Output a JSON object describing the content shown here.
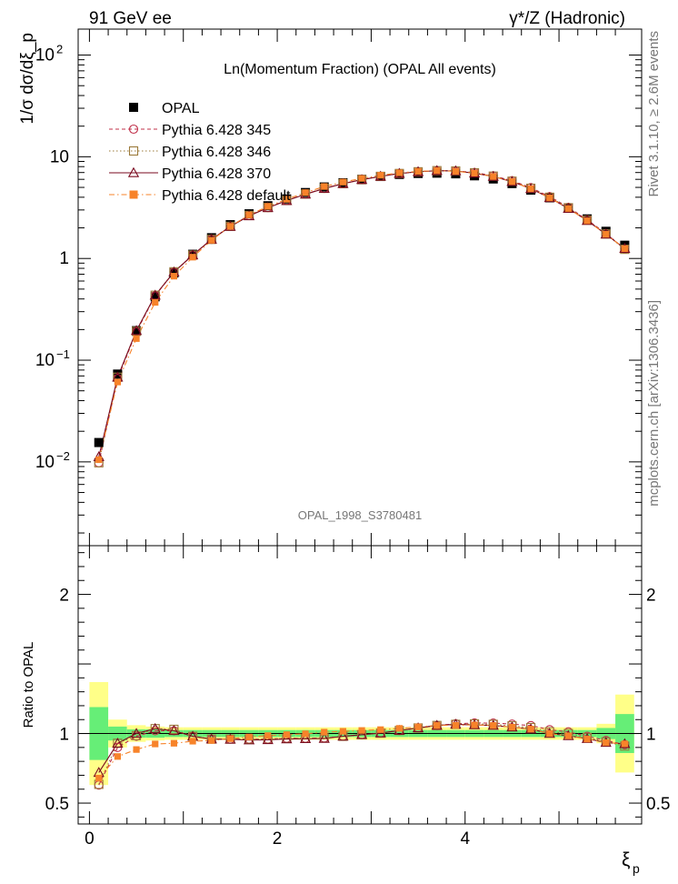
{
  "header": {
    "left": "91 GeV ee",
    "right": "γ*/Z (Hadronic)",
    "side_top": "Rivet 3.1.10, ≥ 2.6M events",
    "side_bottom": "mcplots.cern.ch [arXiv:1306.3436]"
  },
  "chart_data": [
    {
      "type": "scatter",
      "title": "Ln(Momentum Fraction) (OPAL All events)",
      "ylabel": "1/σ dσ/dξ_p",
      "watermark": "OPAL_1998_S3780481",
      "yscale": "log",
      "ylim": [
        0.0015,
        180
      ],
      "xlim": [
        -0.12,
        5.88
      ],
      "y_ticks": [
        "10^-2",
        "10^-1",
        "1",
        "10",
        "10^2"
      ],
      "x": [
        0.1,
        0.3,
        0.5,
        0.7,
        0.9,
        1.1,
        1.3,
        1.5,
        1.7,
        1.9,
        2.1,
        2.3,
        2.5,
        2.7,
        2.9,
        3.1,
        3.3,
        3.5,
        3.7,
        3.9,
        4.1,
        4.3,
        4.5,
        4.7,
        4.9,
        5.1,
        5.3,
        5.5,
        5.7
      ],
      "legend_position": "top-left",
      "series": [
        {
          "name": "OPAL",
          "color": "#000000",
          "marker": "filled-square",
          "values": [
            0.0155,
            0.073,
            0.195,
            0.42,
            0.72,
            1.1,
            1.6,
            2.15,
            2.75,
            3.3,
            3.85,
            4.45,
            5.05,
            5.55,
            6.0,
            6.4,
            6.7,
            6.85,
            6.9,
            6.8,
            6.5,
            6.05,
            5.45,
            4.7,
            3.95,
            3.15,
            2.45,
            1.85,
            1.35
          ]
        },
        {
          "name": "Pythia 6.428 345",
          "color": "#c0304a",
          "marker": "open-circle",
          "line": "dashed",
          "values": [
            0.0098,
            0.066,
            0.19,
            0.43,
            0.735,
            1.08,
            1.54,
            2.07,
            2.65,
            3.17,
            3.72,
            4.3,
            4.89,
            5.44,
            5.95,
            6.42,
            6.85,
            7.12,
            7.3,
            7.27,
            7.0,
            6.5,
            5.82,
            4.97,
            4.06,
            3.19,
            2.4,
            1.76,
            1.24
          ]
        },
        {
          "name": "Pythia 6.428 346",
          "color": "#9b7a3a",
          "marker": "open-square",
          "line": "dotted",
          "values": [
            0.0098,
            0.068,
            0.192,
            0.435,
            0.74,
            1.08,
            1.54,
            2.07,
            2.65,
            3.17,
            3.72,
            4.3,
            4.89,
            5.44,
            5.95,
            6.42,
            6.85,
            7.12,
            7.3,
            7.25,
            6.95,
            6.45,
            5.75,
            4.9,
            4.0,
            3.15,
            2.38,
            1.74,
            1.23
          ]
        },
        {
          "name": "Pythia 6.428 370",
          "color": "#7a0a1f",
          "marker": "open-triangle",
          "line": "solid",
          "values": [
            0.0112,
            0.068,
            0.195,
            0.435,
            0.735,
            1.08,
            1.54,
            2.06,
            2.62,
            3.15,
            3.7,
            4.28,
            4.87,
            5.44,
            5.95,
            6.42,
            6.85,
            7.12,
            7.3,
            7.25,
            6.9,
            6.4,
            5.7,
            4.85,
            3.95,
            3.1,
            2.36,
            1.73,
            1.25
          ]
        },
        {
          "name": "Pythia 6.428 default",
          "color": "#f7832a",
          "marker": "filled-square",
          "line": "dash-dot",
          "values": [
            0.0105,
            0.061,
            0.163,
            0.37,
            0.67,
            1.03,
            1.51,
            2.07,
            2.68,
            3.25,
            3.82,
            4.44,
            5.1,
            5.64,
            6.13,
            6.58,
            6.95,
            7.18,
            7.3,
            7.2,
            6.9,
            6.4,
            5.7,
            4.85,
            3.95,
            3.1,
            2.35,
            1.73,
            1.25
          ]
        }
      ]
    },
    {
      "type": "scatter",
      "ylabel": "Ratio to OPAL",
      "xlabel": "ξ_p",
      "ylim": [
        0.35,
        2.35
      ],
      "xlim": [
        -0.12,
        5.88
      ],
      "x_ticks": [
        0,
        2,
        4
      ],
      "y_ticks": [
        0.5,
        1,
        2
      ],
      "x": [
        0.1,
        0.3,
        0.5,
        0.7,
        0.9,
        1.1,
        1.3,
        1.5,
        1.7,
        1.9,
        2.1,
        2.3,
        2.5,
        2.7,
        2.9,
        3.1,
        3.3,
        3.5,
        3.7,
        3.9,
        4.1,
        4.3,
        4.5,
        4.7,
        4.9,
        5.1,
        5.3,
        5.5,
        5.7
      ],
      "band_stat": [
        0.19,
        0.05,
        0.03,
        0.03,
        0.025,
        0.025,
        0.025,
        0.025,
        0.025,
        0.025,
        0.025,
        0.025,
        0.025,
        0.025,
        0.025,
        0.025,
        0.025,
        0.025,
        0.025,
        0.025,
        0.025,
        0.025,
        0.025,
        0.025,
        0.025,
        0.025,
        0.025,
        0.04,
        0.14
      ],
      "band_total": [
        0.37,
        0.1,
        0.06,
        0.05,
        0.045,
        0.045,
        0.045,
        0.045,
        0.045,
        0.045,
        0.045,
        0.045,
        0.045,
        0.045,
        0.045,
        0.045,
        0.045,
        0.045,
        0.045,
        0.045,
        0.045,
        0.045,
        0.045,
        0.045,
        0.045,
        0.045,
        0.045,
        0.07,
        0.28
      ],
      "band_colors": {
        "stat": "#66ee77",
        "total": "#ffff88"
      },
      "series": [
        {
          "name": "Pythia 6.428 345",
          "color": "#c0304a",
          "marker": "open-circle",
          "line": "dashed",
          "values": [
            0.63,
            0.9,
            0.98,
            1.02,
            1.02,
            0.98,
            0.96,
            0.96,
            0.96,
            0.96,
            0.966,
            0.966,
            0.968,
            0.98,
            0.992,
            1.003,
            1.022,
            1.04,
            1.058,
            1.07,
            1.076,
            1.075,
            1.068,
            1.057,
            1.028,
            1.012,
            0.98,
            0.95,
            0.92
          ]
        },
        {
          "name": "Pythia 6.428 346",
          "color": "#9b7a3a",
          "marker": "open-square",
          "line": "dotted",
          "values": [
            0.635,
            0.93,
            0.985,
            1.035,
            1.03,
            0.98,
            0.96,
            0.96,
            0.96,
            0.96,
            0.966,
            0.966,
            0.968,
            0.98,
            0.992,
            1.003,
            1.022,
            1.04,
            1.058,
            1.066,
            1.069,
            1.066,
            1.055,
            1.043,
            1.013,
            1.0,
            0.972,
            0.94,
            0.91
          ]
        },
        {
          "name": "Pythia 6.428 370",
          "color": "#7a0a1f",
          "marker": "open-triangle",
          "line": "solid",
          "values": [
            0.72,
            0.93,
            1.0,
            1.035,
            1.02,
            0.98,
            0.96,
            0.958,
            0.953,
            0.955,
            0.961,
            0.962,
            0.964,
            0.98,
            0.992,
            1.003,
            1.022,
            1.04,
            1.058,
            1.066,
            1.062,
            1.058,
            1.046,
            1.032,
            1.0,
            0.984,
            0.963,
            0.935,
            0.926
          ]
        },
        {
          "name": "Pythia 6.428 default",
          "color": "#f7832a",
          "marker": "filled-square",
          "line": "dash-dot",
          "values": [
            0.68,
            0.835,
            0.885,
            0.925,
            0.93,
            0.945,
            0.95,
            0.963,
            0.975,
            0.985,
            0.992,
            0.998,
            1.01,
            1.016,
            1.022,
            1.028,
            1.037,
            1.048,
            1.058,
            1.059,
            1.062,
            1.058,
            1.046,
            1.032,
            1.0,
            0.984,
            0.96,
            0.935,
            0.926
          ]
        }
      ]
    }
  ]
}
